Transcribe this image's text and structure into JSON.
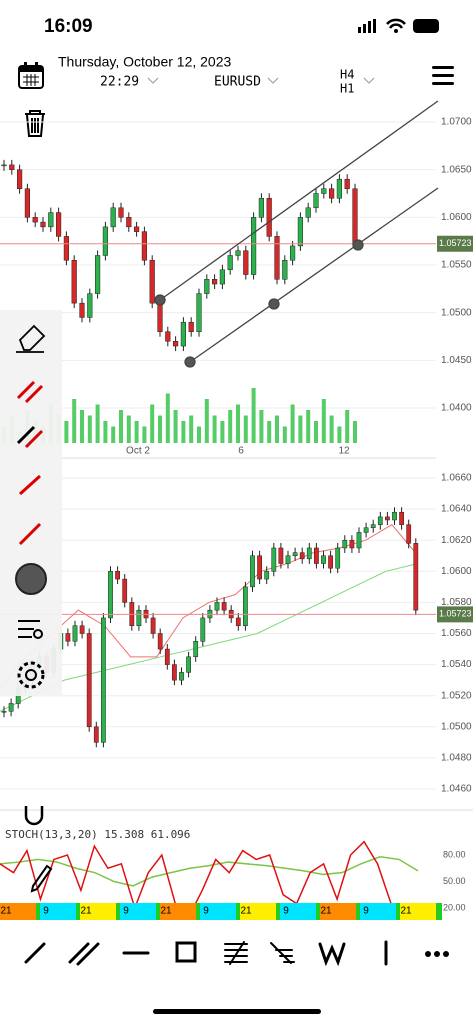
{
  "status_bar": {
    "time": "16:09"
  },
  "header": {
    "date": "Thursday, October 12, 2023",
    "time": "22:29",
    "symbol": "EURUSD",
    "timeframes": [
      "H4",
      "H1"
    ]
  },
  "main_chart": {
    "yticks": [
      {
        "value": 1.07,
        "label": "1.0700"
      },
      {
        "value": 1.065,
        "label": "1.0650"
      },
      {
        "value": 1.06,
        "label": "1.0600"
      },
      {
        "value": 1.055,
        "label": "1.0550"
      },
      {
        "value": 1.05,
        "label": "1.0500"
      },
      {
        "value": 1.045,
        "label": "1.0450"
      },
      {
        "value": 1.04,
        "label": "1.0400"
      }
    ],
    "current_price": 1.05723,
    "x_labels": [
      "Oct 2",
      "6",
      "12"
    ],
    "closes": [
      1.0655,
      1.065,
      1.063,
      1.06,
      1.0595,
      1.059,
      1.0605,
      1.058,
      1.0555,
      1.051,
      1.0495,
      1.052,
      1.056,
      1.059,
      1.061,
      1.06,
      1.059,
      1.0585,
      1.0555,
      1.051,
      1.048,
      1.047,
      1.0465,
      1.049,
      1.048,
      1.052,
      1.0535,
      1.053,
      1.0545,
      1.056,
      1.0565,
      1.054,
      1.06,
      1.062,
      1.058,
      1.0535,
      1.0555,
      1.057,
      1.06,
      1.061,
      1.0625,
      1.063,
      1.062,
      1.064,
      1.063,
      1.0572
    ],
    "volumes": [
      3,
      5,
      2,
      6,
      4,
      3,
      7,
      5,
      4,
      8,
      6,
      5,
      7,
      4,
      3,
      6,
      5,
      4,
      3,
      7,
      5,
      9,
      6,
      4,
      5,
      3,
      8,
      5,
      4,
      6,
      7,
      5,
      10,
      6,
      4,
      5,
      3,
      7,
      5,
      6,
      4,
      8,
      5,
      3,
      6,
      4
    ]
  },
  "second_chart": {
    "yticks": [
      {
        "value": 1.066,
        "label": "1.0660"
      },
      {
        "value": 1.064,
        "label": "1.0640"
      },
      {
        "value": 1.062,
        "label": "1.0620"
      },
      {
        "value": 1.06,
        "label": "1.0600"
      },
      {
        "value": 1.058,
        "label": "1.0580"
      },
      {
        "value": 1.056,
        "label": "1.0560"
      },
      {
        "value": 1.054,
        "label": "1.0540"
      },
      {
        "value": 1.052,
        "label": "1.0520"
      },
      {
        "value": 1.05,
        "label": "1.0500"
      },
      {
        "value": 1.048,
        "label": "1.0480"
      },
      {
        "value": 1.046,
        "label": "1.0460"
      }
    ],
    "current_price": 1.05723,
    "closes": [
      1.051,
      1.0515,
      1.0525,
      1.053,
      1.054,
      1.0545,
      1.0535,
      1.055,
      1.056,
      1.0555,
      1.0565,
      1.056,
      1.05,
      1.049,
      1.057,
      1.06,
      1.0595,
      1.058,
      1.0565,
      1.0575,
      1.057,
      1.056,
      1.055,
      1.054,
      1.053,
      1.0535,
      1.0545,
      1.0555,
      1.057,
      1.0575,
      1.058,
      1.0575,
      1.057,
      1.0565,
      1.059,
      1.061,
      1.0595,
      1.06,
      1.0615,
      1.0605,
      1.061,
      1.0612,
      1.0608,
      1.0615,
      1.0605,
      1.061,
      1.0602,
      1.0615,
      1.062,
      1.0615,
      1.0625,
      1.0628,
      1.063,
      1.0635,
      1.0633,
      1.0638,
      1.063,
      1.0618,
      1.0575
    ],
    "ma_red": [
      1.0525,
      1.0545,
      1.056,
      1.0575,
      1.0565,
      1.0545,
      1.0545,
      1.057,
      1.058,
      1.0585,
      1.06,
      1.0605,
      1.0612,
      1.0615,
      1.062,
      1.063,
      1.061
    ],
    "ma_green": [
      1.051,
      1.052,
      1.053,
      1.0535,
      1.054,
      1.0545,
      1.055,
      1.0555,
      1.056,
      1.057,
      1.058,
      1.059,
      1.06,
      1.0605
    ]
  },
  "stoch": {
    "label": "STOCH(13,3,20) 15.308 61.096",
    "yticks": [
      {
        "value": 80,
        "label": "80.00"
      },
      {
        "value": 50,
        "label": "50.00"
      },
      {
        "value": 20,
        "label": "20.00"
      }
    ],
    "k": [
      70,
      60,
      85,
      30,
      75,
      80,
      40,
      90,
      65,
      70,
      20,
      60,
      80,
      25,
      10,
      40,
      75,
      60,
      85,
      75,
      80,
      35,
      25,
      60,
      70,
      30,
      80,
      95,
      70,
      25,
      20,
      15
    ],
    "d": [
      70,
      72,
      75,
      72,
      65,
      60,
      50,
      45,
      55,
      60,
      65,
      68,
      72,
      70,
      68,
      65,
      62,
      58,
      60,
      70,
      78,
      75,
      62
    ]
  },
  "time_band": [
    "21",
    "9",
    "21",
    "9",
    "21",
    "9",
    "21",
    "9",
    "21",
    "9",
    "21"
  ]
}
